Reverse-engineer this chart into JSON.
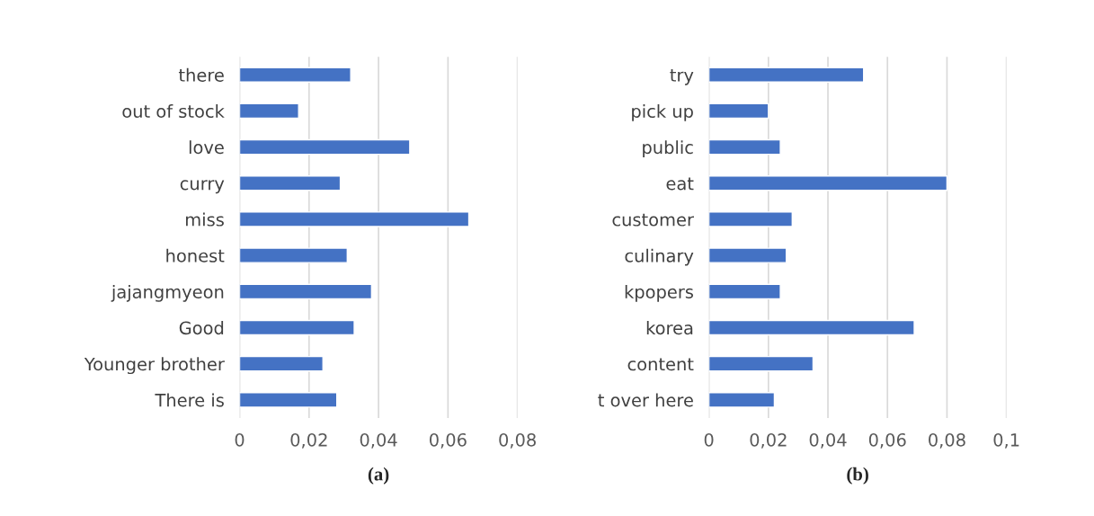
{
  "chart_data": [
    {
      "type": "bar",
      "orientation": "horizontal",
      "xlabel": "(a)",
      "categories": [
        "there",
        "out of stock",
        "love",
        "curry",
        "miss",
        "honest",
        "jajangmyeon",
        "Good",
        "Younger brother",
        "There is"
      ],
      "series": [
        {
          "color": "#4472c4",
          "values": [
            0.032,
            0.017,
            0.049,
            0.029,
            0.066,
            0.031,
            0.038,
            0.033,
            0.024,
            0.028
          ]
        }
      ],
      "xlim": [
        0,
        0.08
      ],
      "xticks": [
        0,
        {
          "value": 0.02,
          "label": "0,02"
        },
        {
          "value": 0.04,
          "label": "0,04"
        },
        {
          "value": 0.06,
          "label": "0,06"
        },
        {
          "value": 0.08,
          "label": "0,08"
        }
      ],
      "grid": "x",
      "legend": false
    },
    {
      "type": "bar",
      "orientation": "horizontal",
      "xlabel": "(b)",
      "categories": [
        "try",
        "pick up",
        "public",
        "eat",
        "customer",
        "culinary",
        "kpopers",
        "korea",
        "content",
        "t over here"
      ],
      "series": [
        {
          "color": "#4472c4",
          "values": [
            0.052,
            0.02,
            0.024,
            0.08,
            0.028,
            0.026,
            0.024,
            0.069,
            0.035,
            0.022
          ]
        }
      ],
      "xlim": [
        0,
        0.1
      ],
      "xticks": [
        0,
        {
          "value": 0.02,
          "label": "0,02"
        },
        {
          "value": 0.04,
          "label": "0,04"
        },
        {
          "value": 0.06,
          "label": "0,06"
        },
        {
          "value": 0.08,
          "label": "0,08"
        },
        {
          "value": 0.1,
          "label": "0,1"
        }
      ],
      "grid": "x",
      "legend": false
    }
  ]
}
